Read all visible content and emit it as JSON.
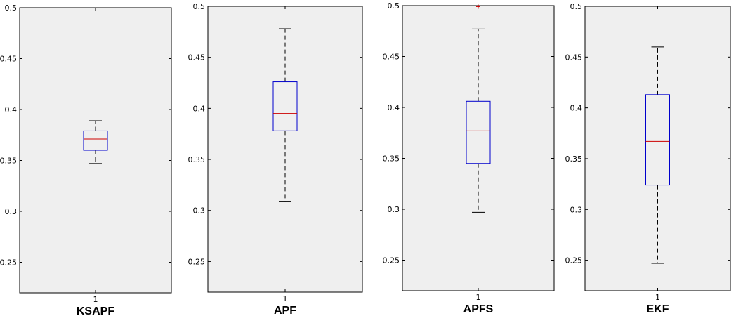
{
  "colors": {
    "box": "#0000cc",
    "median": "#cc0000",
    "whisker": "#000000",
    "outlier": "#cc0000",
    "axes_bg": "#efefef"
  },
  "chart_data": [
    {
      "type": "box",
      "xlabel": "KSAPF",
      "x_tick": "1",
      "ylim": [
        0.22,
        0.5
      ],
      "yticks": [
        0.25,
        0.3,
        0.35,
        0.4,
        0.45,
        0.5
      ],
      "ytick_labels": [
        "0.25",
        "0.3",
        "0.35",
        "0.4",
        "0.45",
        "0.5"
      ],
      "stats": {
        "whisker_low": 0.347,
        "q1": 0.36,
        "median": 0.371,
        "q3": 0.379,
        "whisker_high": 0.389
      },
      "outliers": []
    },
    {
      "type": "box",
      "xlabel": "APF",
      "x_tick": "1",
      "ylim": [
        0.22,
        0.5
      ],
      "yticks": [
        0.25,
        0.3,
        0.35,
        0.4,
        0.45,
        0.5
      ],
      "ytick_labels": [
        "0.25",
        "0.3",
        "0.35",
        "0.4",
        "0.45",
        "0.5"
      ],
      "stats": {
        "whisker_low": 0.309,
        "q1": 0.378,
        "median": 0.395,
        "q3": 0.426,
        "whisker_high": 0.478
      },
      "outliers": []
    },
    {
      "type": "box",
      "xlabel": "APFS",
      "x_tick": "1",
      "ylim": [
        0.22,
        0.5
      ],
      "yticks": [
        0.25,
        0.3,
        0.35,
        0.4,
        0.45,
        0.5
      ],
      "ytick_labels": [
        "0.25",
        "0.3",
        "0.35",
        "0.4",
        "0.45",
        "0.5"
      ],
      "stats": {
        "whisker_low": 0.297,
        "q1": 0.345,
        "median": 0.377,
        "q3": 0.406,
        "whisker_high": 0.477
      },
      "outliers": [
        0.499
      ]
    },
    {
      "type": "box",
      "xlabel": "EKF",
      "x_tick": "1",
      "ylim": [
        0.22,
        0.5
      ],
      "yticks": [
        0.25,
        0.3,
        0.35,
        0.4,
        0.45,
        0.5
      ],
      "ytick_labels": [
        "0.25",
        "0.3",
        "0.35",
        "0.4",
        "0.45",
        "0.5"
      ],
      "stats": {
        "whisker_low": 0.247,
        "q1": 0.324,
        "median": 0.367,
        "q3": 0.413,
        "whisker_high": 0.46
      },
      "outliers": []
    }
  ]
}
